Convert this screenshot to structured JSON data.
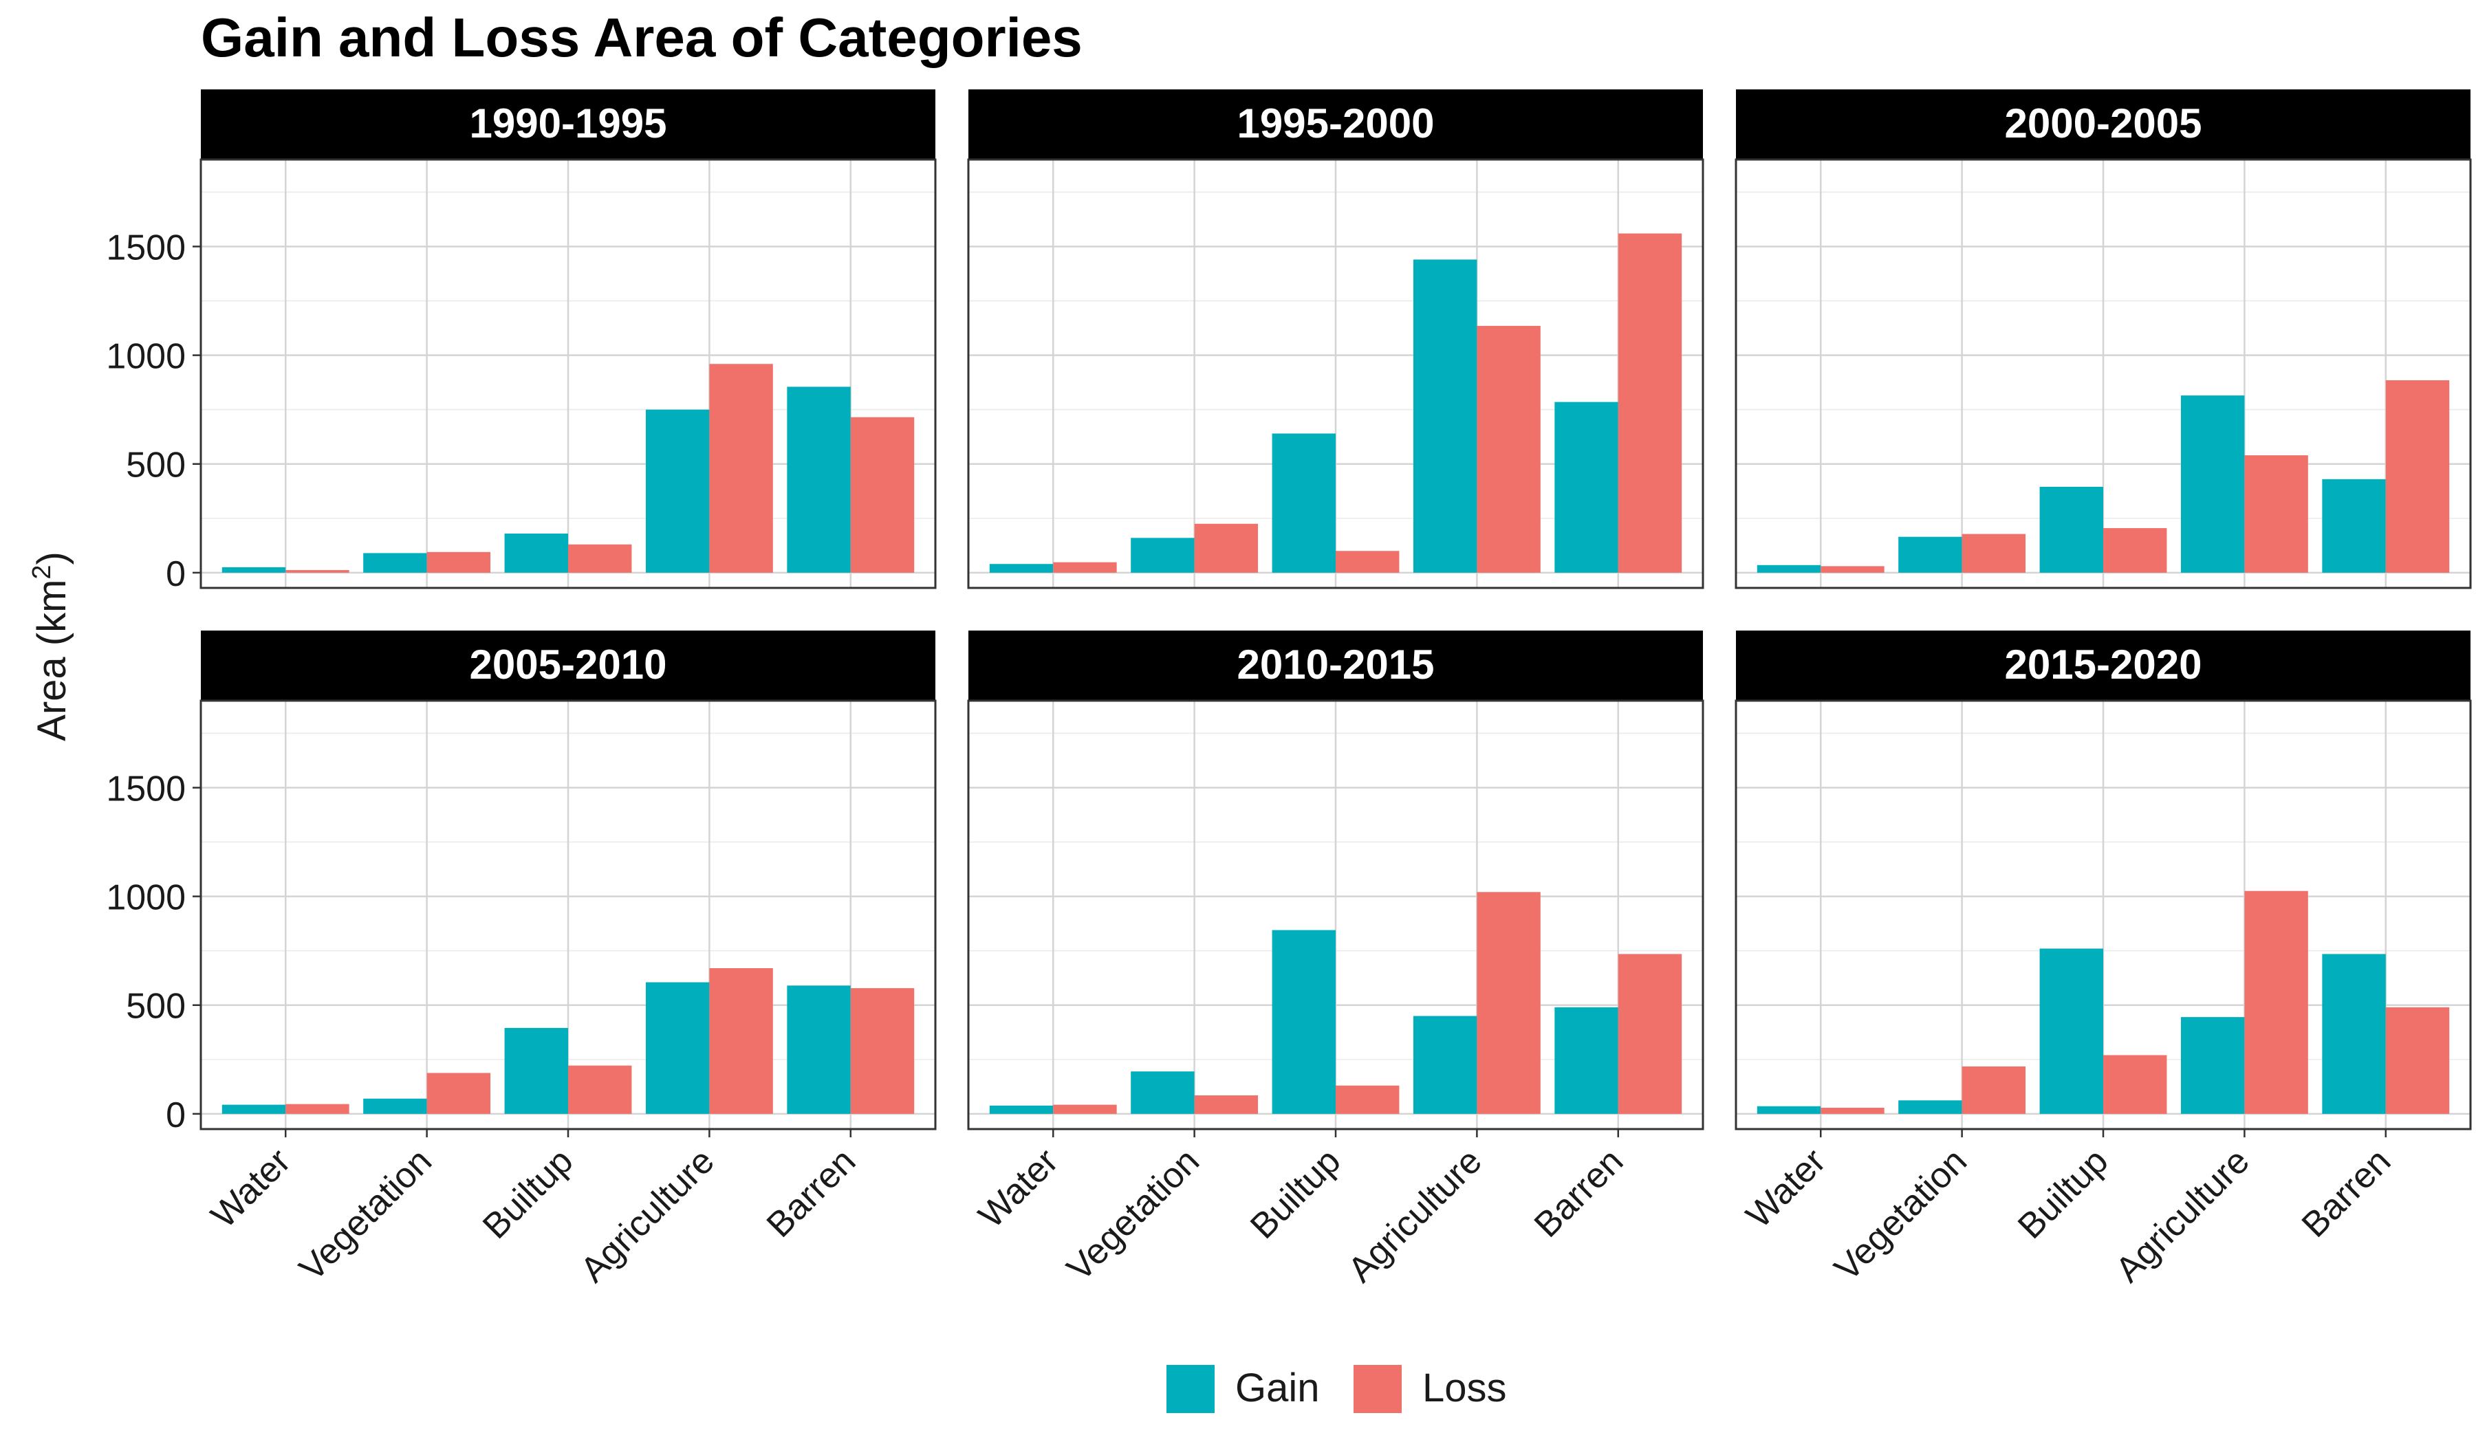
{
  "chart_data": {
    "type": "bar",
    "title": "Gain and Loss Area of Categories",
    "ylabel": "Area (km",
    "ylabel_sup": "2",
    "ylabel_tail": ")",
    "xlabel": "",
    "categories": [
      "Water",
      "Vegetation",
      "Builtup",
      "Agriculture",
      "Barren"
    ],
    "ylim": [
      -70,
      1900
    ],
    "yticks": [
      0,
      500,
      1000,
      1500
    ],
    "grid": true,
    "legend_position": "bottom",
    "legend": [
      {
        "name": "Gain",
        "color": "#00AFBB"
      },
      {
        "name": "Loss",
        "color": "#F0716A"
      }
    ],
    "panels": [
      {
        "label": "1990-1995",
        "series": [
          {
            "name": "Gain",
            "values": [
              25,
              90,
              180,
              750,
              855
            ]
          },
          {
            "name": "Loss",
            "values": [
              12,
              95,
              130,
              960,
              715
            ]
          }
        ]
      },
      {
        "label": "1995-2000",
        "series": [
          {
            "name": "Gain",
            "values": [
              40,
              160,
              640,
              1440,
              785
            ]
          },
          {
            "name": "Loss",
            "values": [
              48,
              225,
              100,
              1135,
              1560
            ]
          }
        ]
      },
      {
        "label": "2000-2005",
        "series": [
          {
            "name": "Gain",
            "values": [
              35,
              165,
              395,
              815,
              430
            ]
          },
          {
            "name": "Loss",
            "values": [
              30,
              178,
              205,
              540,
              885
            ]
          }
        ]
      },
      {
        "label": "2005-2010",
        "series": [
          {
            "name": "Gain",
            "values": [
              42,
              70,
              395,
              605,
              590
            ]
          },
          {
            "name": "Loss",
            "values": [
              45,
              188,
              222,
              670,
              578
            ]
          }
        ]
      },
      {
        "label": "2010-2015",
        "series": [
          {
            "name": "Gain",
            "values": [
              38,
              195,
              845,
              450,
              490
            ]
          },
          {
            "name": "Loss",
            "values": [
              42,
              85,
              130,
              1020,
              735
            ]
          }
        ]
      },
      {
        "label": "2015-2020",
        "series": [
          {
            "name": "Gain",
            "values": [
              35,
              62,
              760,
              445,
              735
            ]
          },
          {
            "name": "Loss",
            "values": [
              28,
              218,
              270,
              1025,
              490
            ]
          }
        ]
      }
    ]
  }
}
